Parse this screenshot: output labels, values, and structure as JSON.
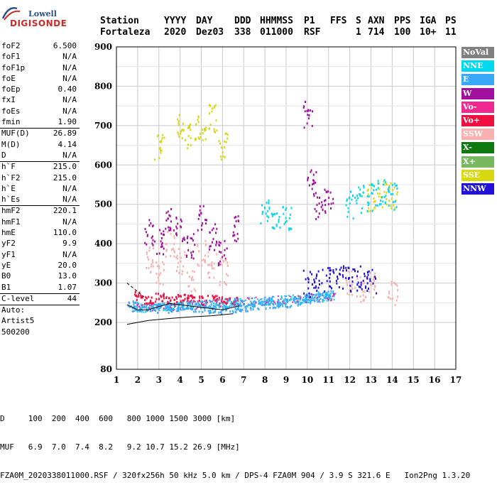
{
  "logo": {
    "line1": "Lowell",
    "line2": "DIGISONDE"
  },
  "header": {
    "labels": [
      "Station",
      "YYYY",
      "DAY",
      "DDD",
      "HHMMSS",
      "P1",
      "FFS",
      "S",
      "AXN",
      "PPS",
      "IGA",
      "PS"
    ],
    "values": [
      "Fortaleza",
      "2020",
      "Dez03",
      "338",
      "011000",
      "RSF",
      "",
      "1",
      "714",
      "100",
      "10+",
      "11"
    ]
  },
  "params": {
    "group1": [
      {
        "label": "foF2",
        "value": "6.500"
      },
      {
        "label": "foF1",
        "value": "N/A"
      },
      {
        "label": "foF1p",
        "value": "N/A"
      },
      {
        "label": "foE",
        "value": "N/A"
      },
      {
        "label": "foEp",
        "value": "0.40"
      },
      {
        "label": "fxI",
        "value": "N/A"
      },
      {
        "label": "foEs",
        "value": "N/A"
      },
      {
        "label": "fmin",
        "value": "1.90"
      }
    ],
    "group2": [
      {
        "label": "MUF(D)",
        "value": "26.89"
      },
      {
        "label": "M(D)",
        "value": "4.14"
      },
      {
        "label": "D",
        "value": "N/A"
      }
    ],
    "group3": [
      {
        "label": "h`F",
        "value": "215.0"
      },
      {
        "label": "h`F2",
        "value": "215.0"
      },
      {
        "label": "h`E",
        "value": "N/A"
      },
      {
        "label": "h`Es",
        "value": "N/A"
      }
    ],
    "group4": [
      {
        "label": "hmF2",
        "value": "220.1"
      },
      {
        "label": "hmF1",
        "value": "N/A"
      },
      {
        "label": "hmE",
        "value": "110.0"
      },
      {
        "label": "yF2",
        "value": "9.9"
      },
      {
        "label": "yF1",
        "value": "N/A"
      },
      {
        "label": "yE",
        "value": "20.0"
      },
      {
        "label": "B0",
        "value": "13.0"
      },
      {
        "label": "B1",
        "value": "1.07"
      }
    ],
    "clevel": {
      "label": "C-level",
      "value": "44"
    },
    "auto": [
      "Auto:",
      "Artist5",
      "500200"
    ]
  },
  "legend": [
    {
      "label": "NoVal",
      "color": "#808080"
    },
    {
      "label": "NNE",
      "color": "#00d8f0"
    },
    {
      "label": "E",
      "color": "#3aa8f8"
    },
    {
      "label": "W",
      "color": "#a0109c"
    },
    {
      "label": "Vo-",
      "color": "#f02890"
    },
    {
      "label": "Vo+",
      "color": "#f01040"
    },
    {
      "label": "SSW",
      "color": "#f8b0b0"
    },
    {
      "label": "X-",
      "color": "#107810"
    },
    {
      "label": "X+",
      "color": "#78b860"
    },
    {
      "label": "SSE",
      "color": "#d8d810"
    },
    {
      "label": "NNW",
      "color": "#2010d8"
    }
  ],
  "footer": {
    "row1": "D     100  200  400  600   800 1000 1500 3000 [km]",
    "row2": "MUF   6.9  7.0  7.4  8.2   9.2 10.7 15.2 26.9 [MHz]",
    "row3": "FZA0M_2020338011000.RSF / 320fx256h 50 kHz 5.0 km / DPS-4 FZA0M 904 / 3.9 S 321.6 E   Ion2Png 1.3.20"
  },
  "chart_data": {
    "type": "scatter",
    "xlim": [
      1,
      17
    ],
    "ylim": [
      80,
      900
    ],
    "x_ticks": [
      1,
      2,
      3,
      4,
      5,
      6,
      7,
      8,
      9,
      10,
      11,
      12,
      13,
      14,
      15,
      16,
      17
    ],
    "y_ticks": [
      80,
      200,
      300,
      400,
      500,
      600,
      700,
      800,
      900
    ],
    "grid": true,
    "series": [
      {
        "name": "E",
        "points": [
          [
            1.7,
            245
          ],
          [
            2.0,
            242
          ],
          [
            2.5,
            240
          ],
          [
            3.0,
            238
          ],
          [
            3.5,
            238
          ],
          [
            4.0,
            240
          ],
          [
            4.5,
            240
          ],
          [
            5.0,
            238
          ],
          [
            5.5,
            236
          ],
          [
            6.0,
            235
          ],
          [
            6.5,
            238
          ],
          [
            7.0,
            240
          ],
          [
            7.5,
            245
          ],
          [
            8.0,
            248
          ],
          [
            8.5,
            250
          ],
          [
            9.0,
            252
          ],
          [
            9.5,
            256
          ],
          [
            10.0,
            262
          ],
          [
            10.5,
            268
          ],
          [
            11.0,
            272
          ]
        ]
      },
      {
        "name": "W",
        "points": [
          [
            2.5,
            430
          ],
          [
            3.0,
            410
          ],
          [
            3.5,
            460
          ],
          [
            4.0,
            440
          ],
          [
            4.5,
            400
          ],
          [
            5.0,
            470
          ],
          [
            5.5,
            420
          ],
          [
            6.0,
            380
          ],
          [
            6.5,
            440
          ],
          [
            10.0,
            730
          ],
          [
            10.2,
            560
          ],
          [
            10.5,
            500
          ],
          [
            11.0,
            510
          ]
        ]
      },
      {
        "name": "SSW",
        "points": [
          [
            2.5,
            360
          ],
          [
            3.0,
            330
          ],
          [
            3.5,
            400
          ],
          [
            4.0,
            360
          ],
          [
            4.5,
            300
          ],
          [
            5.0,
            380
          ],
          [
            5.5,
            350
          ],
          [
            6.0,
            330
          ],
          [
            12.0,
            300
          ],
          [
            12.5,
            290
          ],
          [
            13.0,
            300
          ],
          [
            14.0,
            280
          ]
        ]
      },
      {
        "name": "SSE",
        "points": [
          [
            3.0,
            650
          ],
          [
            4.0,
            700
          ],
          [
            4.5,
            680
          ],
          [
            5.0,
            700
          ],
          [
            5.5,
            720
          ],
          [
            6.0,
            650
          ],
          [
            13.0,
            520
          ],
          [
            13.5,
            530
          ],
          [
            14.0,
            525
          ]
        ]
      },
      {
        "name": "NNW",
        "points": [
          [
            10.0,
            300
          ],
          [
            10.5,
            305
          ],
          [
            11.0,
            310
          ],
          [
            11.5,
            320
          ],
          [
            12.0,
            315
          ],
          [
            12.5,
            310
          ],
          [
            13.0,
            305
          ]
        ]
      },
      {
        "name": "NNE",
        "points": [
          [
            8.0,
            480
          ],
          [
            8.5,
            470
          ],
          [
            9.0,
            470
          ],
          [
            12.0,
            500
          ],
          [
            12.5,
            515
          ],
          [
            13.0,
            520
          ],
          [
            13.5,
            530
          ],
          [
            14.0,
            520
          ]
        ]
      },
      {
        "name": "Vo+",
        "points": [
          [
            2.0,
            270
          ],
          [
            2.5,
            260
          ],
          [
            3.0,
            265
          ],
          [
            3.5,
            258
          ],
          [
            4.0,
            262
          ],
          [
            4.5,
            260
          ],
          [
            5.0,
            258
          ],
          [
            5.5,
            262
          ],
          [
            6.0,
            260
          ],
          [
            6.5,
            256
          ]
        ]
      }
    ]
  }
}
